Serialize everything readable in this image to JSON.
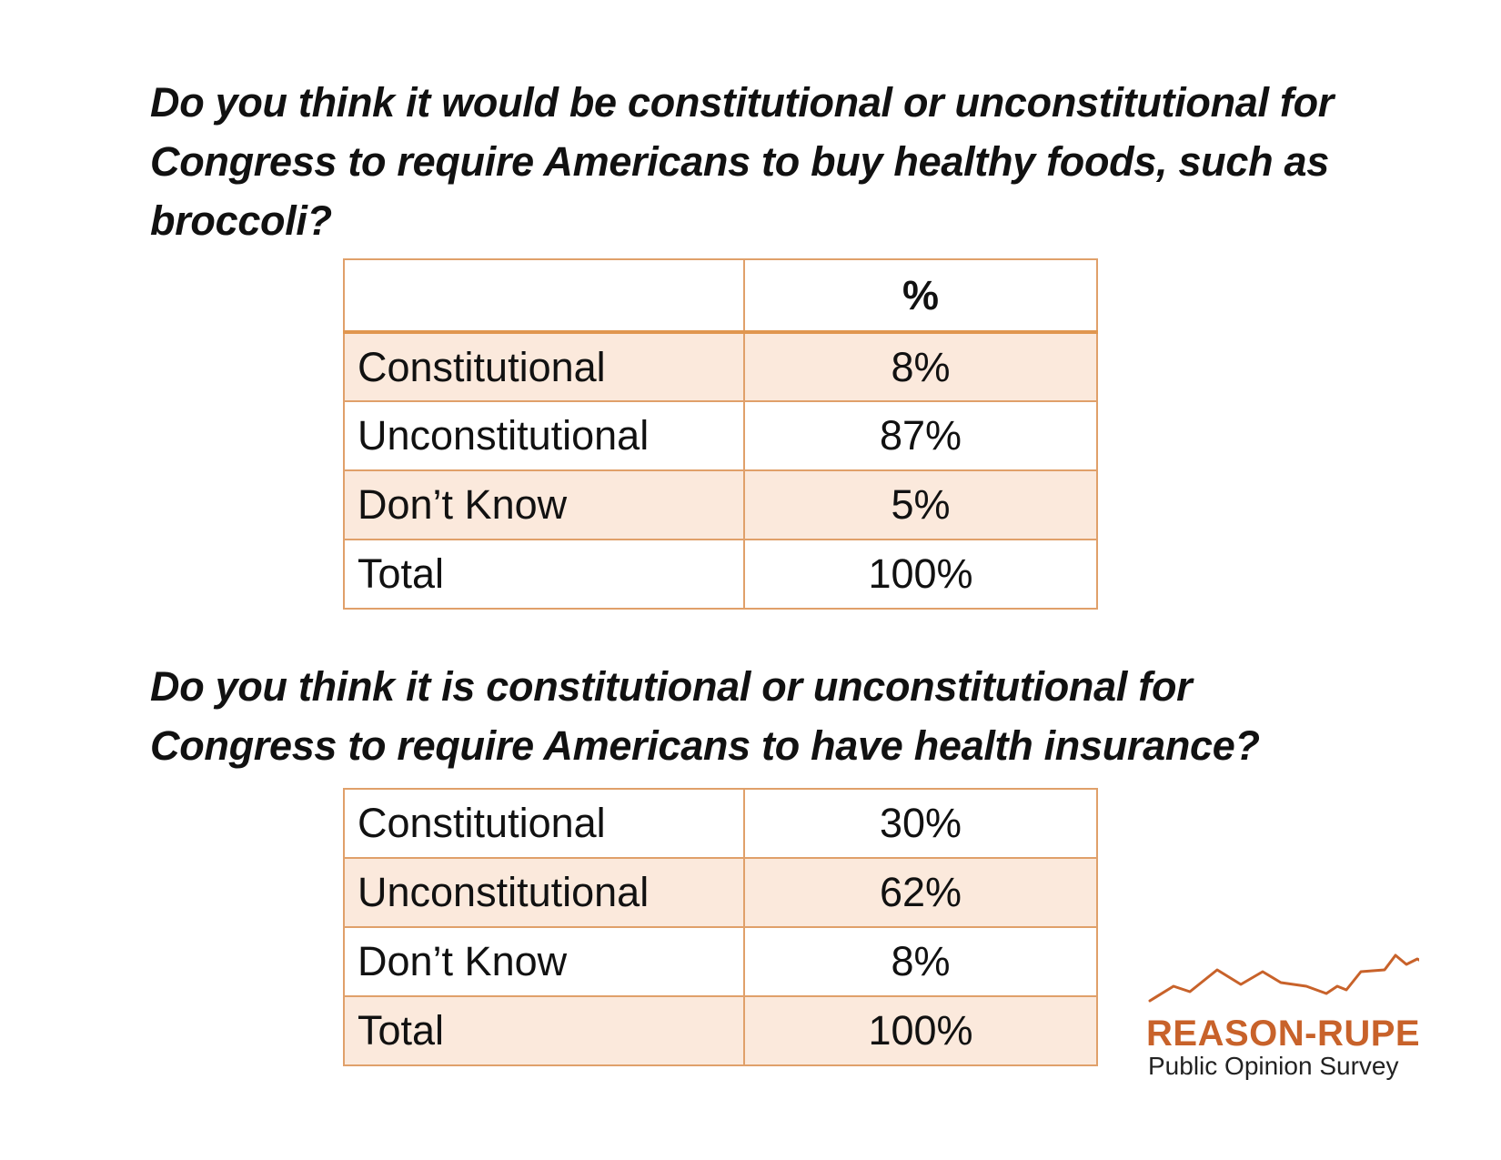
{
  "question1": {
    "text": "Do you think it would be constitutional or unconstitutional for Congress to require Americans to buy healthy foods, such as broccoli?",
    "table": {
      "header": [
        "",
        "%"
      ],
      "rows": [
        {
          "label": "Constitutional",
          "value": "8%"
        },
        {
          "label": "Unconstitutional",
          "value": "87%"
        },
        {
          "label": "Don’t Know",
          "value": "5%"
        },
        {
          "label": "Total",
          "value": "100%"
        }
      ]
    }
  },
  "question2": {
    "text": "Do you think it is constitutional or unconstitutional for Congress to require Americans to have health insurance?",
    "table": {
      "rows": [
        {
          "label": "Constitutional",
          "value": "30%"
        },
        {
          "label": "Unconstitutional",
          "value": "62%"
        },
        {
          "label": "Don’t Know",
          "value": "8%"
        },
        {
          "label": "Total",
          "value": "100%"
        }
      ]
    }
  },
  "logo": {
    "title": "REASON-RUPE",
    "subtitle": "Public Opinion Survey",
    "color": "#c8622a"
  },
  "colors": {
    "table_border": "#e0a06a",
    "row_shade": "#fbe9dc"
  }
}
